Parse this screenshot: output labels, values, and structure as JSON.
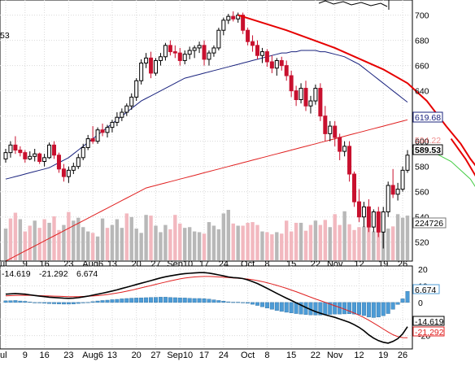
{
  "chart_data": [
    {
      "type": "candlestick",
      "title": "",
      "partial_left_label": "53",
      "ylim": [
        505,
        712
      ],
      "y_ticks": [
        520,
        540,
        560,
        580,
        600,
        620,
        640,
        660,
        680,
        700
      ],
      "x_tick_labels": [
        "ul",
        "9",
        "16",
        "23",
        "Aug6",
        "13",
        "20",
        "27",
        "Sep10",
        "17",
        "24",
        "Oct",
        "8",
        "15",
        "22",
        "Nov",
        "12",
        "19",
        "26"
      ],
      "last_price_label": "589.53",
      "ma_label": "619.68",
      "ma_hidden_label": "594.22",
      "volume_label": "224726",
      "grid": true,
      "colors": {
        "up": "#000000",
        "down": "#c8102e",
        "ma_long": "#e02020",
        "ma_mid": "#1a237e",
        "trend": "#e60000",
        "projection": "#44cc44",
        "volume_up": "#b8b8b8",
        "volume_down": "#f2b8bf"
      },
      "candles": [
        [
          586,
          594,
          583,
          591
        ],
        [
          591,
          600,
          587,
          597
        ],
        [
          597,
          604,
          590,
          593
        ],
        [
          593,
          596,
          588,
          591
        ],
        [
          591,
          593,
          583,
          586
        ],
        [
          586,
          592,
          585,
          588
        ],
        [
          588,
          594,
          584,
          590
        ],
        [
          590,
          591,
          582,
          584
        ],
        [
          584,
          590,
          580,
          587
        ],
        [
          587,
          599,
          586,
          597
        ],
        [
          597,
          600,
          586,
          589
        ],
        [
          589,
          591,
          575,
          578
        ],
        [
          578,
          582,
          568,
          572
        ],
        [
          572,
          580,
          567,
          577
        ],
        [
          577,
          583,
          574,
          580
        ],
        [
          580,
          590,
          578,
          587
        ],
        [
          587,
          598,
          585,
          595
        ],
        [
          595,
          605,
          593,
          602
        ],
        [
          602,
          612,
          598,
          600
        ],
        [
          600,
          611,
          598,
          609
        ],
        [
          609,
          614,
          604,
          607
        ],
        [
          607,
          613,
          603,
          611
        ],
        [
          611,
          617,
          607,
          615
        ],
        [
          615,
          623,
          612,
          619
        ],
        [
          619,
          626,
          616,
          623
        ],
        [
          623,
          630,
          620,
          628
        ],
        [
          628,
          638,
          625,
          635
        ],
        [
          635,
          650,
          632,
          648
        ],
        [
          648,
          665,
          645,
          662
        ],
        [
          662,
          670,
          658,
          666
        ],
        [
          666,
          671,
          650,
          654
        ],
        [
          654,
          666,
          652,
          664
        ],
        [
          664,
          670,
          660,
          667
        ],
        [
          667,
          678,
          664,
          676
        ],
        [
          676,
          680,
          668,
          671
        ],
        [
          671,
          676,
          666,
          670
        ],
        [
          670,
          674,
          660,
          664
        ],
        [
          664,
          672,
          661,
          669
        ],
        [
          669,
          675,
          665,
          672
        ],
        [
          672,
          676,
          666,
          674
        ],
        [
          674,
          679,
          670,
          676
        ],
        [
          676,
          680,
          660,
          665
        ],
        [
          665,
          672,
          660,
          670
        ],
        [
          670,
          676,
          667,
          674
        ],
        [
          674,
          690,
          672,
          688
        ],
        [
          688,
          698,
          684,
          696
        ],
        [
          696,
          701,
          693,
          699
        ],
        [
          699,
          703,
          695,
          697
        ],
        [
          697,
          702,
          694,
          700
        ],
        [
          700,
          702,
          685,
          688
        ],
        [
          688,
          690,
          676,
          679
        ],
        [
          679,
          684,
          671,
          676
        ],
        [
          676,
          680,
          665,
          668
        ],
        [
          668,
          674,
          662,
          671
        ],
        [
          671,
          673,
          659,
          663
        ],
        [
          663,
          668,
          654,
          658
        ],
        [
          658,
          666,
          652,
          664
        ],
        [
          664,
          667,
          656,
          660
        ],
        [
          660,
          664,
          648,
          652
        ],
        [
          652,
          656,
          635,
          640
        ],
        [
          640,
          644,
          628,
          633
        ],
        [
          633,
          646,
          630,
          642
        ],
        [
          642,
          648,
          624,
          628
        ],
        [
          628,
          636,
          622,
          632
        ],
        [
          632,
          645,
          629,
          642
        ],
        [
          642,
          646,
          616,
          620
        ],
        [
          620,
          628,
          600,
          606
        ],
        [
          606,
          616,
          600,
          612
        ],
        [
          612,
          616,
          596,
          603
        ],
        [
          603,
          606,
          585,
          592
        ],
        [
          592,
          600,
          588,
          596
        ],
        [
          596,
          600,
          568,
          574
        ],
        [
          574,
          576,
          548,
          552
        ],
        [
          552,
          562,
          536,
          540
        ],
        [
          540,
          552,
          532,
          548
        ],
        [
          548,
          554,
          528,
          532
        ],
        [
          532,
          546,
          528,
          544
        ],
        [
          544,
          548,
          524,
          528
        ],
        [
          528,
          548,
          515,
          544
        ],
        [
          544,
          568,
          540,
          565
        ],
        [
          565,
          578,
          555,
          558
        ],
        [
          558,
          567,
          553,
          562
        ],
        [
          562,
          580,
          560,
          577
        ],
        [
          577,
          593,
          575,
          589
        ]
      ],
      "volume_up_flags": [
        1,
        0,
        0,
        1,
        0,
        0,
        1,
        0,
        0,
        1,
        0,
        0,
        1,
        0,
        1,
        1,
        1,
        1,
        0,
        1,
        1,
        0,
        1,
        1,
        1,
        0,
        1,
        1,
        1,
        1,
        0,
        1,
        1,
        1,
        0,
        0,
        0,
        1,
        1,
        1,
        1,
        0,
        1,
        1,
        1,
        1,
        1,
        0,
        1,
        0,
        0,
        0,
        0,
        1,
        0,
        0,
        1,
        0,
        0,
        0,
        0,
        1,
        0,
        0,
        1,
        0,
        0,
        1,
        0,
        0,
        1,
        0,
        0,
        0,
        1,
        0,
        1,
        0,
        1,
        1,
        0,
        1,
        1,
        1
      ],
      "volume": [
        44,
        58,
        66,
        57,
        40,
        48,
        55,
        45,
        57,
        52,
        61,
        42,
        49,
        67,
        55,
        59,
        46,
        40,
        38,
        33,
        58,
        45,
        49,
        57,
        45,
        65,
        60,
        44,
        38,
        63,
        62,
        48,
        39,
        49,
        43,
        63,
        51,
        45,
        46,
        40,
        39,
        37,
        53,
        48,
        43,
        65,
        70,
        51,
        48,
        48,
        52,
        53,
        49,
        40,
        39,
        36,
        39,
        37,
        55,
        40,
        52,
        52,
        41,
        49,
        55,
        49,
        56,
        46,
        64,
        49,
        68,
        50,
        42,
        46,
        47,
        51,
        40,
        62,
        44,
        44,
        47,
        64,
        59,
        62
      ],
      "ma_long": [
        505,
        507,
        509,
        511,
        513,
        515,
        517,
        519,
        521,
        523,
        525,
        527,
        529,
        531,
        533,
        535,
        537,
        539,
        541,
        543,
        545,
        547,
        549,
        551,
        553,
        555,
        557,
        559,
        561,
        563,
        564,
        565,
        566,
        567,
        568,
        569,
        570,
        571,
        572,
        573,
        574,
        575,
        576,
        577,
        578,
        579,
        580,
        581,
        582,
        583,
        584,
        585,
        586,
        587,
        588,
        589,
        590,
        591,
        592,
        593,
        594,
        595,
        596,
        597,
        598,
        599,
        600,
        601,
        602,
        603,
        604,
        605,
        606,
        607,
        608,
        609,
        610,
        611,
        612,
        613,
        614,
        615,
        616,
        617
      ],
      "ma_mid": [
        570,
        571,
        572,
        573,
        574,
        575,
        576,
        577,
        578,
        579,
        581,
        583,
        585,
        587,
        590,
        593,
        596,
        599,
        602,
        605,
        608,
        611,
        614,
        617,
        620,
        623,
        626,
        629,
        632,
        634,
        636,
        638,
        640,
        642,
        644,
        646,
        648,
        650,
        651,
        652,
        653,
        654,
        655,
        656,
        657,
        658,
        659,
        660,
        661,
        662,
        663,
        664,
        665,
        666,
        667,
        668,
        669,
        670,
        670,
        671,
        671,
        672,
        672,
        672,
        672,
        671,
        671,
        670,
        669,
        668,
        667,
        665,
        663,
        661,
        658,
        655,
        652,
        649,
        646,
        643,
        640,
        637,
        634,
        631
      ],
      "trend_line": [
        [
          48,
          700
        ],
        [
          58,
          688
        ],
        [
          68,
          674
        ],
        [
          78,
          657
        ],
        [
          83,
          646
        ],
        [
          87,
          632
        ],
        [
          91,
          612
        ],
        [
          94,
          598
        ],
        [
          96,
          586
        ],
        [
          98,
          576
        ]
      ],
      "projection_line": [
        [
          84,
          594
        ],
        [
          88,
          592
        ],
        [
          92,
          584
        ],
        [
          96,
          570
        ],
        [
          99,
          552
        ]
      ]
    },
    {
      "type": "macd",
      "ylim": [
        -28,
        22
      ],
      "y_ticks": [
        20,
        10,
        0,
        -10,
        -20
      ],
      "x_tick_labels": [
        "ul",
        "9",
        "16",
        "23",
        "Aug6",
        "13",
        "20",
        "27",
        "Sep10",
        "17",
        "24",
        "Oct",
        "8",
        "15",
        "22",
        "Nov",
        "12",
        "19",
        "26"
      ],
      "header_macd": "-14.619",
      "header_signal": "-21.292",
      "header_hist": "6.674",
      "hist_label": "6.674",
      "macd_label": "-14.619",
      "signal_label": "-21.292",
      "colors": {
        "macd": "#000000",
        "signal": "#e02020",
        "hist": "#4c9bd6"
      },
      "macd": [
        5,
        5.2,
        5.4,
        5.2,
        5,
        4.6,
        4.2,
        3.8,
        3.5,
        3.2,
        3,
        2.8,
        2.6,
        2.5,
        2.6,
        2.9,
        3.3,
        3.8,
        4.4,
        5,
        5.6,
        6.2,
        6.9,
        7.6,
        8.4,
        9.2,
        10,
        10.8,
        11.6,
        12.4,
        13.2,
        14,
        14.8,
        15.5,
        16,
        16.5,
        17,
        17.4,
        17.6,
        17.8,
        18,
        18,
        17.7,
        17.2,
        16.6,
        16,
        15.4,
        15,
        14.8,
        14.4,
        13.6,
        12.6,
        11.4,
        10,
        8.5,
        7,
        5.5,
        4,
        2.6,
        1.2,
        -0.2,
        -1.6,
        -3,
        -4.3,
        -5.5,
        -6.5,
        -7.4,
        -8.2,
        -9,
        -10,
        -11,
        -12,
        -13.4,
        -15,
        -17,
        -19.5,
        -21.5,
        -23,
        -24,
        -24.5,
        -23.5,
        -21.8,
        -19,
        -14.6
      ],
      "signal": [
        4,
        4.1,
        4.2,
        4.3,
        4.3,
        4.3,
        4.2,
        4.1,
        4,
        3.9,
        3.8,
        3.7,
        3.6,
        3.5,
        3.5,
        3.5,
        3.6,
        3.7,
        3.9,
        4.1,
        4.4,
        4.8,
        5.2,
        5.7,
        6.2,
        6.8,
        7.4,
        8.1,
        8.8,
        9.5,
        10.2,
        10.9,
        11.6,
        12.3,
        13,
        13.6,
        14.2,
        14.7,
        15.1,
        15.4,
        15.6,
        15.7,
        15.7,
        15.6,
        15.4,
        15.2,
        15,
        14.8,
        14.6,
        14.4,
        14.1,
        13.7,
        13.2,
        12.6,
        11.9,
        11.1,
        10.3,
        9.4,
        8.5,
        7.5,
        6.5,
        5.4,
        4.3,
        3.2,
        2.1,
        1.1,
        0.1,
        -1,
        -2,
        -3,
        -4.1,
        -5.2,
        -6.4,
        -7.7,
        -9.1,
        -10.7,
        -12.4,
        -14.2,
        -16,
        -17.8,
        -19.4,
        -20.6,
        -21.2,
        -21.3
      ]
    }
  ]
}
